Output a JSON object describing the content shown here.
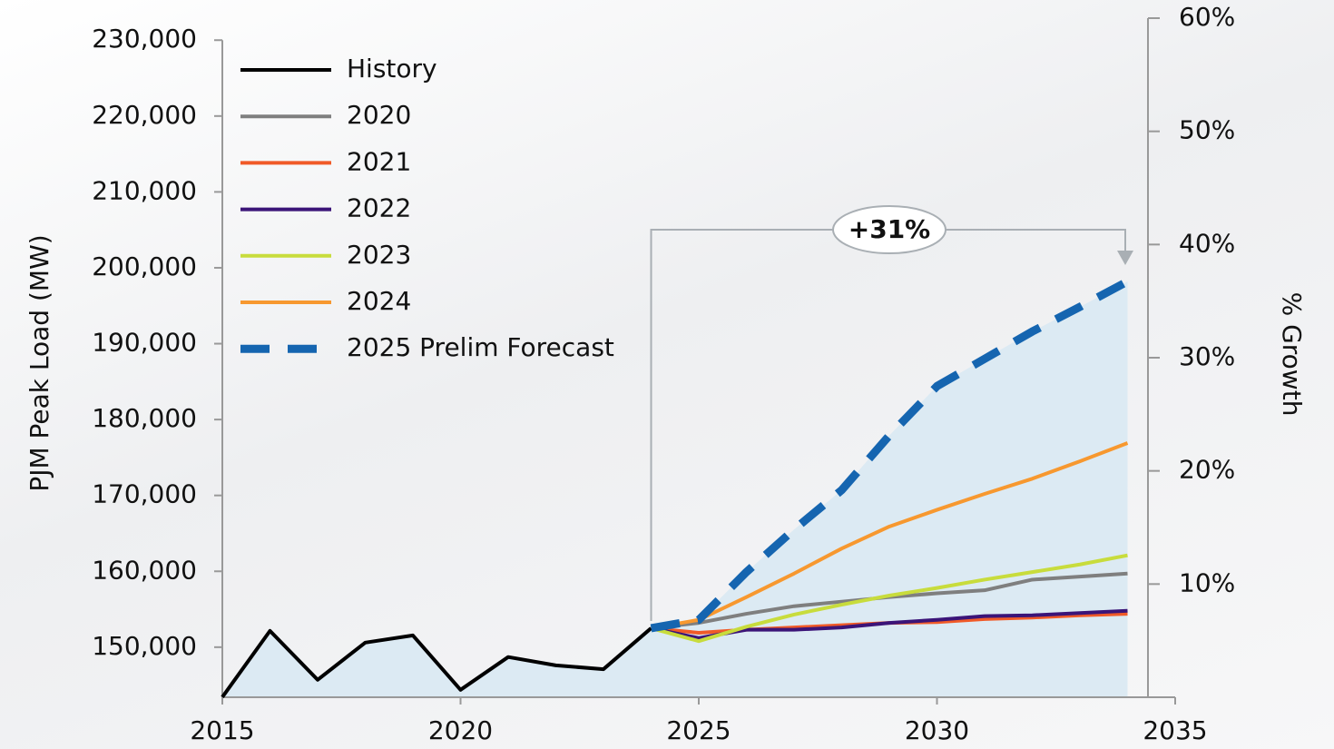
{
  "chart_data": {
    "type": "line",
    "ylabel": "PJM Peak Load (MW)",
    "y2label": "% Growth",
    "xlim": [
      2015,
      2035
    ],
    "xticks": [
      2015,
      2020,
      2025,
      2030,
      2035
    ],
    "ylim": [
      143400,
      232900
    ],
    "yticks": [
      {
        "value": 150000,
        "label": "150,000"
      },
      {
        "value": 160000,
        "label": "160,000"
      },
      {
        "value": 170000,
        "label": "170,000"
      },
      {
        "value": 180000,
        "label": "180,000"
      },
      {
        "value": 190000,
        "label": "190,000"
      },
      {
        "value": 200000,
        "label": "200,000"
      },
      {
        "value": 210000,
        "label": "210,000"
      },
      {
        "value": 220000,
        "label": "220,000"
      },
      {
        "value": 230000,
        "label": "230,000"
      }
    ],
    "y2lim": [
      0,
      60
    ],
    "y2ticks": [
      {
        "value": 10,
        "label": "10%"
      },
      {
        "value": 20,
        "label": "20%"
      },
      {
        "value": 30,
        "label": "30%"
      },
      {
        "value": 40,
        "label": "40%"
      },
      {
        "value": 50,
        "label": "50%"
      },
      {
        "value": 60,
        "label": "60%"
      }
    ],
    "area_color": "#dceaf3",
    "annotation": "+31%",
    "series": [
      {
        "name": "History",
        "color": "#000000",
        "x": [
          2015,
          2016,
          2017,
          2018,
          2019,
          2020,
          2021,
          2022,
          2023,
          2024
        ],
        "values": [
          143420,
          152150,
          145700,
          150600,
          151550,
          144380,
          148700,
          147600,
          147100,
          152500
        ]
      },
      {
        "name": "2020",
        "color": "#7f7f7f",
        "x": [
          2024,
          2025,
          2026,
          2027,
          2028,
          2029,
          2030,
          2031,
          2032,
          2033,
          2034
        ],
        "values": [
          152500,
          153200,
          154400,
          155400,
          156000,
          156600,
          157100,
          157500,
          158900,
          159300,
          159700
        ]
      },
      {
        "name": "2021",
        "color": "#f05a28",
        "x": [
          2024,
          2025,
          2026,
          2027,
          2028,
          2029,
          2030,
          2031,
          2032,
          2033,
          2034
        ],
        "values": [
          152500,
          151900,
          152300,
          152600,
          152900,
          153200,
          153300,
          153700,
          153900,
          154200,
          154400
        ]
      },
      {
        "name": "2022",
        "color": "#3b1478",
        "x": [
          2024,
          2025,
          2026,
          2027,
          2028,
          2029,
          2030,
          2031,
          2032,
          2033,
          2034
        ],
        "values": [
          152500,
          151200,
          152300,
          152300,
          152600,
          153200,
          153600,
          154100,
          154200,
          154500,
          154800
        ]
      },
      {
        "name": "2023",
        "color": "#c8dc3c",
        "x": [
          2024,
          2025,
          2026,
          2027,
          2028,
          2029,
          2030,
          2031,
          2032,
          2033,
          2034
        ],
        "values": [
          152500,
          150800,
          152700,
          154300,
          155600,
          156800,
          157800,
          158900,
          159900,
          160900,
          162100
        ]
      },
      {
        "name": "2024",
        "color": "#f7982f",
        "x": [
          2024,
          2025,
          2026,
          2027,
          2028,
          2029,
          2030,
          2031,
          2032,
          2033,
          2034
        ],
        "values": [
          152500,
          153600,
          156600,
          159700,
          163000,
          165900,
          168100,
          170200,
          172200,
          174500,
          176900
        ]
      },
      {
        "name": "2025 Prelim Forecast",
        "color": "#1565b0",
        "style": "dashed",
        "x": [
          2024,
          2025,
          2026,
          2027,
          2028,
          2029,
          2030,
          2031,
          2032,
          2033,
          2034
        ],
        "values": [
          152500,
          153600,
          159900,
          165500,
          170700,
          177900,
          184400,
          188000,
          191600,
          194850,
          198200
        ]
      }
    ]
  }
}
